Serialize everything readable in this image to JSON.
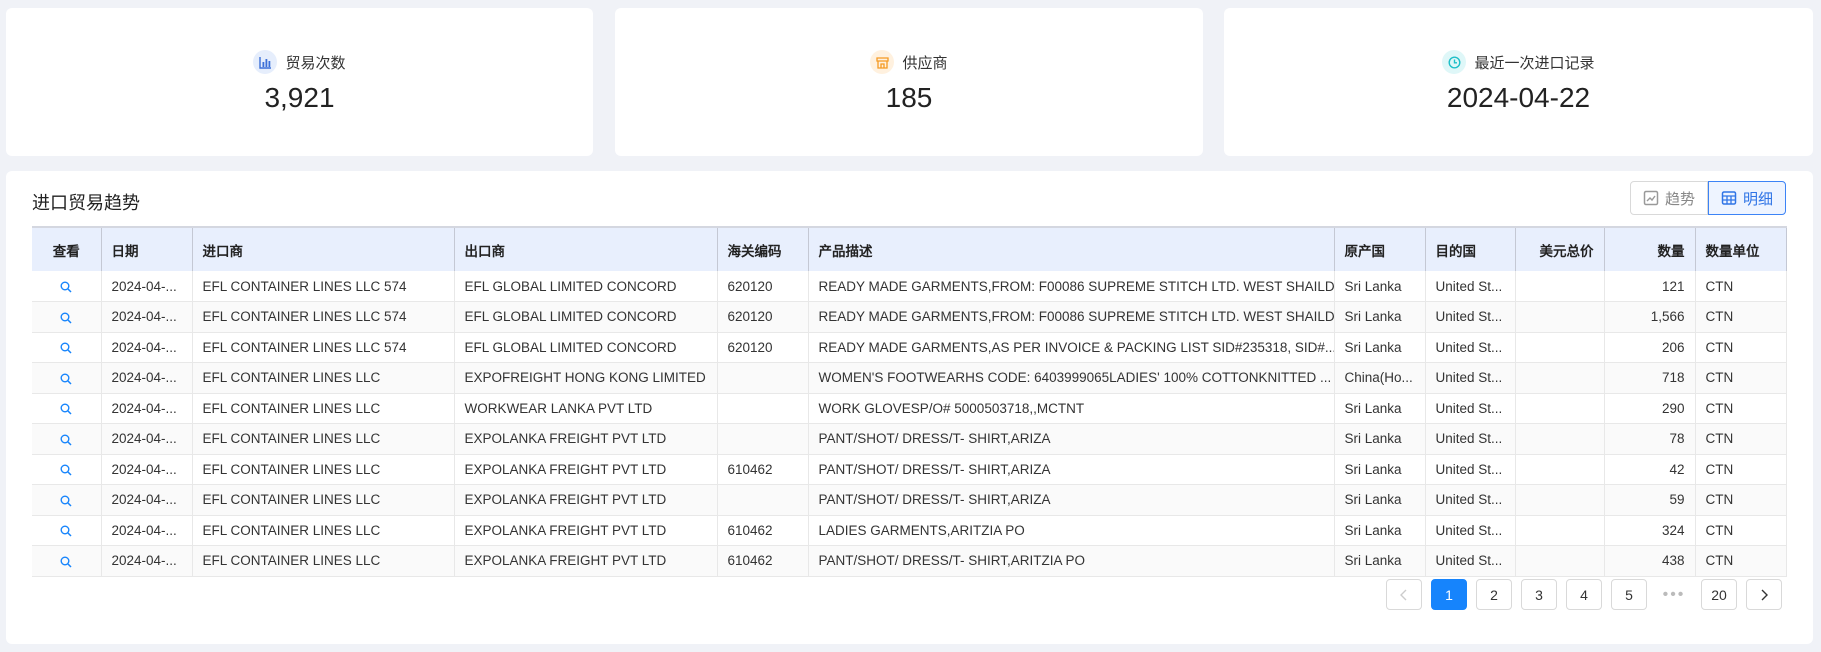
{
  "stats": [
    {
      "label": "贸易次数",
      "value": "3,921",
      "icon": "bar-chart-icon",
      "color": "#3c6fd8",
      "bg": "#e6eefc"
    },
    {
      "label": "供应商",
      "value": "185",
      "icon": "store-icon",
      "color": "#f59a23",
      "bg": "#fff1df"
    },
    {
      "label": "最近一次进口记录",
      "value": "2024-04-22",
      "icon": "clock-icon",
      "color": "#1fbfc8",
      "bg": "#dff7f8"
    }
  ],
  "panel": {
    "title": "进口贸易趋势",
    "toggle": {
      "trend": "趋势",
      "detail": "明细",
      "active": "detail"
    }
  },
  "table": {
    "headers": [
      "查看",
      "日期",
      "进口商",
      "出口商",
      "海关编码",
      "产品描述",
      "原产国",
      "目的国",
      "美元总价",
      "数量",
      "数量单位"
    ],
    "rows": [
      [
        "2024-04-...",
        "EFL CONTAINER LINES LLC 574",
        "EFL GLOBAL LIMITED CONCORD",
        "620120",
        "READY MADE GARMENTS,FROM: F00086 SUPREME STITCH LTD. WEST SHAILD...",
        "Sri Lanka",
        "United St...",
        "",
        "121",
        "CTN"
      ],
      [
        "2024-04-...",
        "EFL CONTAINER LINES LLC 574",
        "EFL GLOBAL LIMITED CONCORD",
        "620120",
        "READY MADE GARMENTS,FROM: F00086 SUPREME STITCH LTD. WEST SHAILD...",
        "Sri Lanka",
        "United St...",
        "",
        "1,566",
        "CTN"
      ],
      [
        "2024-04-...",
        "EFL CONTAINER LINES LLC 574",
        "EFL GLOBAL LIMITED CONCORD",
        "620120",
        "READY MADE GARMENTS,AS PER INVOICE & PACKING LIST SID#235318, SID#...",
        "Sri Lanka",
        "United St...",
        "",
        "206",
        "CTN"
      ],
      [
        "2024-04-...",
        "EFL CONTAINER LINES LLC",
        "EXPOFREIGHT HONG KONG LIMITED",
        "",
        "WOMEN'S FOOTWEARHS CODE: 6403999065LADIES' 100% COTTONKNITTED ...",
        "China(Ho...",
        "United St...",
        "",
        "718",
        "CTN"
      ],
      [
        "2024-04-...",
        "EFL CONTAINER LINES LLC",
        "WORKWEAR LANKA PVT LTD",
        "",
        "WORK GLOVESP/O# 5000503718,,MCTNT",
        "Sri Lanka",
        "United St...",
        "",
        "290",
        "CTN"
      ],
      [
        "2024-04-...",
        "EFL CONTAINER LINES LLC",
        "EXPOLANKA FREIGHT PVT LTD",
        "",
        "PANT/SHOT/ DRESS/T- SHIRT,ARIZA",
        "Sri Lanka",
        "United St...",
        "",
        "78",
        "CTN"
      ],
      [
        "2024-04-...",
        "EFL CONTAINER LINES LLC",
        "EXPOLANKA FREIGHT PVT LTD",
        "610462",
        "PANT/SHOT/ DRESS/T- SHIRT,ARIZA",
        "Sri Lanka",
        "United St...",
        "",
        "42",
        "CTN"
      ],
      [
        "2024-04-...",
        "EFL CONTAINER LINES LLC",
        "EXPOLANKA FREIGHT PVT LTD",
        "",
        "PANT/SHOT/ DRESS/T- SHIRT,ARIZA",
        "Sri Lanka",
        "United St...",
        "",
        "59",
        "CTN"
      ],
      [
        "2024-04-...",
        "EFL CONTAINER LINES LLC",
        "EXPOLANKA FREIGHT PVT LTD",
        "610462",
        "LADIES GARMENTS,ARITZIA PO",
        "Sri Lanka",
        "United St...",
        "",
        "324",
        "CTN"
      ],
      [
        "2024-04-...",
        "EFL CONTAINER LINES LLC",
        "EXPOLANKA FREIGHT PVT LTD",
        "610462",
        "PANT/SHOT/ DRESS/T- SHIRT,ARITZIA PO",
        "Sri Lanka",
        "United St...",
        "",
        "438",
        "CTN"
      ]
    ]
  },
  "pagination": {
    "pages": [
      "1",
      "2",
      "3",
      "4",
      "5"
    ],
    "ellipsis": "•••",
    "last": "20",
    "current": "1"
  },
  "colors": {
    "accent": "#1684fc",
    "header_bg": "#e8effd",
    "page_bg": "#f0f2f7"
  }
}
